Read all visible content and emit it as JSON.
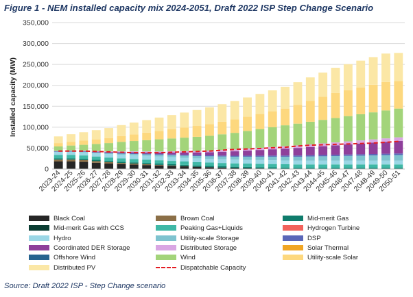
{
  "figure": {
    "title": "Figure 1 - NEM installed capacity mix 2024-2051, Draft 2022 ISP Step Change Scenario",
    "source": "Source: Draft 2022 ISP - Step Change scenario"
  },
  "chart_data": {
    "type": "bar",
    "stacked": true,
    "ylabel": "Installed capacity (MW)",
    "xlabel": "",
    "ylim": [
      0,
      350000
    ],
    "yticks": [
      "0",
      "50,000",
      "100,000",
      "150,000",
      "200,000",
      "250,000",
      "300,000",
      "350,000"
    ],
    "grid": true,
    "legend_position": "bottom",
    "categories": [
      "2023-24",
      "2024-25",
      "2025-26",
      "2026-27",
      "2027-28",
      "2028-29",
      "2029-30",
      "2030-31",
      "2031-32",
      "2032-33",
      "2033-34",
      "2034-35",
      "2035-36",
      "2036-37",
      "2037-38",
      "2038-39",
      "2039-40",
      "2040-41",
      "2041-42",
      "2042-43",
      "2043-44",
      "2044-45",
      "2045-46",
      "2046-47",
      "2047-48",
      "2048-49",
      "2049-50",
      "2050-51"
    ],
    "series": [
      {
        "name": "Black Coal",
        "color": "#262626",
        "values": [
          18000,
          18000,
          17000,
          15000,
          13000,
          11500,
          10500,
          9500,
          8500,
          7500,
          6500,
          5500,
          4500,
          3500,
          2500,
          2000,
          1500,
          1000,
          500,
          0,
          0,
          0,
          0,
          0,
          0,
          0,
          0,
          0
        ]
      },
      {
        "name": "Brown Coal",
        "color": "#8b6f47",
        "values": [
          4500,
          4500,
          4500,
          4000,
          3500,
          3000,
          2500,
          2000,
          1500,
          1000,
          500,
          0,
          0,
          0,
          0,
          0,
          0,
          0,
          0,
          0,
          0,
          0,
          0,
          0,
          0,
          0,
          0,
          0
        ]
      },
      {
        "name": "Mid-merit Gas",
        "color": "#0f7c6c",
        "values": [
          3000,
          3000,
          3000,
          3000,
          3000,
          3000,
          3000,
          3000,
          3000,
          3000,
          3000,
          3000,
          3000,
          3000,
          3000,
          3000,
          3000,
          3000,
          3000,
          3000,
          3000,
          3000,
          3000,
          3000,
          3000,
          3000,
          3000,
          3000
        ]
      },
      {
        "name": "Mid-merit Gas with CCS",
        "color": "#0b3d33",
        "values": [
          0,
          0,
          0,
          0,
          0,
          0,
          0,
          0,
          0,
          0,
          0,
          0,
          0,
          0,
          0,
          0,
          0,
          0,
          0,
          0,
          0,
          0,
          0,
          0,
          0,
          0,
          0,
          0
        ]
      },
      {
        "name": "Peaking Gas+Liquids",
        "color": "#3fb8a6",
        "values": [
          8000,
          8000,
          8000,
          8000,
          8000,
          8000,
          8000,
          8000,
          8000,
          8000,
          8000,
          8000,
          8000,
          8000,
          8000,
          8000,
          8000,
          8000,
          8000,
          8000,
          8000,
          8000,
          8000,
          8000,
          8000,
          8000,
          8000,
          8000
        ]
      },
      {
        "name": "Hydrogen Turbine",
        "color": "#f2625b",
        "values": [
          0,
          0,
          0,
          0,
          0,
          0,
          0,
          0,
          0,
          0,
          0,
          0,
          0,
          0,
          0,
          0,
          0,
          0,
          0,
          0,
          0,
          0,
          0,
          0,
          0,
          0,
          0,
          0
        ]
      },
      {
        "name": "Hydro",
        "color": "#9bd7e6",
        "values": [
          7500,
          7500,
          7500,
          7800,
          8200,
          8800,
          9000,
          9000,
          9000,
          9000,
          9000,
          9000,
          9000,
          9000,
          9000,
          9000,
          9000,
          9000,
          9000,
          9000,
          9000,
          9000,
          9000,
          9000,
          9000,
          9000,
          9000,
          9000
        ]
      },
      {
        "name": "Utility-scale Storage",
        "color": "#7ec3cf",
        "values": [
          500,
          800,
          1000,
          1500,
          2000,
          2500,
          3000,
          3500,
          4000,
          4500,
          5000,
          5500,
          6000,
          6500,
          7000,
          7500,
          8000,
          8500,
          9000,
          9500,
          10000,
          10500,
          11000,
          11500,
          12000,
          12500,
          13000,
          13500
        ]
      },
      {
        "name": "DSP",
        "color": "#5a67b8",
        "values": [
          1000,
          1100,
          1200,
          1300,
          1400,
          1500,
          1600,
          1700,
          1800,
          1900,
          2000,
          2100,
          2200,
          2300,
          2400,
          2500,
          2600,
          2700,
          2800,
          2900,
          3000,
          3100,
          3200,
          3300,
          3400,
          3500,
          3600,
          3700
        ]
      },
      {
        "name": "Coordinated DER Storage",
        "color": "#8e3f9a",
        "values": [
          300,
          500,
          700,
          1000,
          1500,
          2000,
          2500,
          3000,
          3500,
          4500,
          5500,
          6500,
          7500,
          9000,
          10500,
          12000,
          13500,
          15000,
          16500,
          18000,
          19500,
          21000,
          22500,
          24000,
          25500,
          27000,
          28500,
          30000
        ]
      },
      {
        "name": "Distributed Storage",
        "color": "#d9a6e3",
        "values": [
          500,
          800,
          1000,
          1300,
          1600,
          1900,
          2200,
          2500,
          2800,
          3100,
          3400,
          3700,
          4000,
          4300,
          4600,
          4900,
          5200,
          5500,
          5800,
          6100,
          6400,
          6700,
          7000,
          7300,
          7600,
          7900,
          8200,
          8500
        ]
      },
      {
        "name": "Solar Thermal",
        "color": "#f0a524",
        "values": [
          0,
          0,
          0,
          0,
          0,
          0,
          0,
          0,
          0,
          0,
          0,
          0,
          0,
          0,
          0,
          0,
          0,
          0,
          0,
          0,
          0,
          0,
          0,
          0,
          0,
          0,
          0,
          0
        ]
      },
      {
        "name": "Offshore Wind",
        "color": "#26638f",
        "values": [
          0,
          0,
          0,
          0,
          0,
          0,
          0,
          0,
          0,
          0,
          0,
          0,
          0,
          0,
          0,
          0,
          0,
          0,
          0,
          0,
          0,
          0,
          0,
          0,
          0,
          0,
          0,
          0
        ]
      },
      {
        "name": "Wind",
        "color": "#a3d47a",
        "values": [
          10700,
          12000,
          14000,
          17000,
          19800,
          22800,
          24700,
          26800,
          28900,
          30500,
          32100,
          33700,
          35300,
          37400,
          39500,
          42100,
          44700,
          47300,
          49900,
          52000,
          54100,
          56200,
          58300,
          60400,
          62500,
          64600,
          66700,
          68800
        ]
      },
      {
        "name": "Utility-scale Solar",
        "color": "#fdd87e",
        "values": [
          8000,
          9000,
          10000,
          11000,
          12000,
          14000,
          16000,
          18000,
          20000,
          22000,
          24000,
          26000,
          28000,
          30000,
          32000,
          34000,
          36000,
          38000,
          40000,
          45000,
          50000,
          55000,
          60000,
          62000,
          64000,
          66000,
          68000,
          66000
        ]
      },
      {
        "name": "Distributed PV",
        "color": "#fbe7a6",
        "values": [
          16000,
          18000,
          20000,
          22000,
          24000,
          26000,
          28000,
          30000,
          32000,
          34000,
          36000,
          38000,
          40000,
          42000,
          44000,
          46000,
          48000,
          50000,
          52000,
          54000,
          56000,
          58000,
          60000,
          62000,
          64000,
          66000,
          68000,
          67000
        ]
      }
    ],
    "line_series": {
      "name": "Dispatchable Capacity",
      "color": "#e31c23",
      "values": [
        43000,
        43000,
        43000,
        42000,
        41000,
        40000,
        39000,
        39000,
        39000,
        40000,
        41000,
        42000,
        43000,
        45000,
        47000,
        48000,
        49000,
        51000,
        52000,
        55000,
        57000,
        58000,
        59000,
        60000,
        61000,
        62000,
        64000,
        66000
      ]
    }
  }
}
